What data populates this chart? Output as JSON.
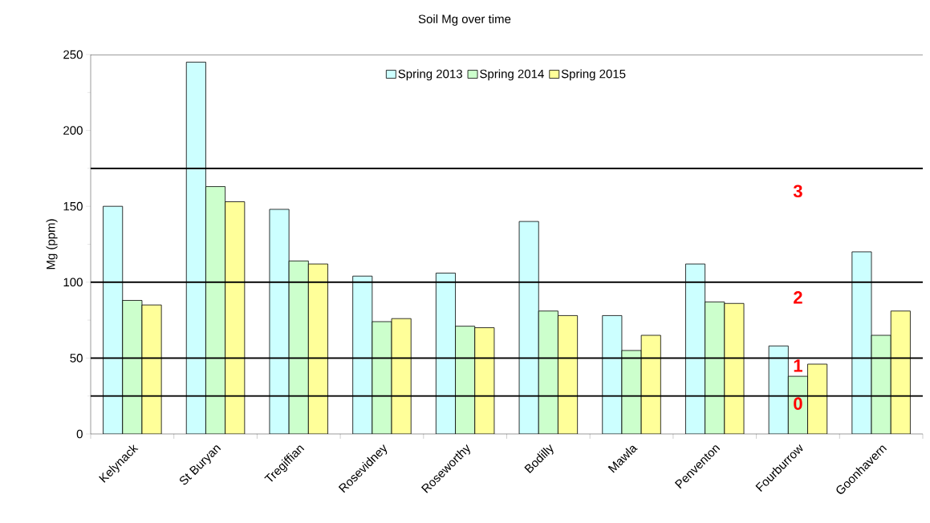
{
  "chart_data": {
    "type": "bar",
    "title": "Soil Mg over time",
    "ylabel": "Mg (ppm)",
    "categories": [
      "Kelynack",
      "St Buryan",
      "Tregiffian",
      "Rosevidney",
      "Roseworthy",
      "Bodilly",
      "Mawla",
      "Penventon",
      "Fourburrow",
      "Goonhavern"
    ],
    "series": [
      {
        "name": "Spring 2013",
        "color": "#ccffff",
        "values": [
          150,
          245,
          148,
          104,
          106,
          140,
          78,
          112,
          58,
          120
        ]
      },
      {
        "name": "Spring 2014",
        "color": "#ccffcc",
        "values": [
          88,
          163,
          114,
          74,
          71,
          81,
          55,
          87,
          38,
          65
        ]
      },
      {
        "name": "Spring 2015",
        "color": "#ffff99",
        "values": [
          85,
          153,
          112,
          76,
          70,
          78,
          65,
          86,
          46,
          81
        ]
      }
    ],
    "ylim": [
      0,
      250
    ],
    "yticks": [
      0,
      50,
      100,
      150,
      200,
      250
    ],
    "legend": "top",
    "grid": false,
    "ref_lines": [
      {
        "axis": "y",
        "value": 175
      },
      {
        "axis": "y",
        "value": 100
      },
      {
        "axis": "y",
        "value": 50
      },
      {
        "axis": "y",
        "value": 25
      }
    ],
    "annotations": [
      "3",
      "2",
      "1",
      "0"
    ]
  }
}
